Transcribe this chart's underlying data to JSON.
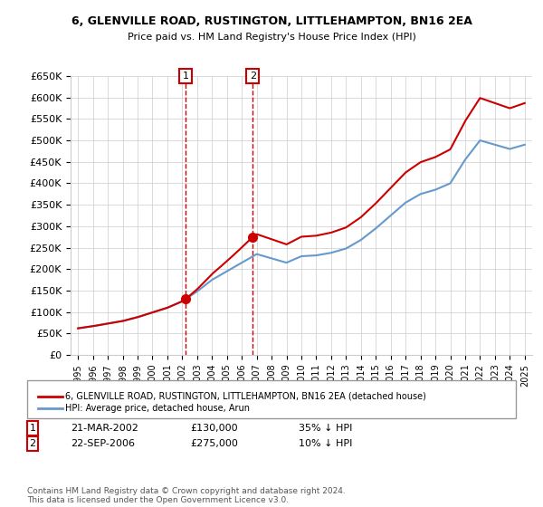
{
  "title": "6, GLENVILLE ROAD, RUSTINGTON, LITTLEHAMPTON, BN16 2EA",
  "subtitle": "Price paid vs. HM Land Registry's House Price Index (HPI)",
  "ylabel_ticks": [
    "£0",
    "£50K",
    "£100K",
    "£150K",
    "£200K",
    "£250K",
    "£300K",
    "£350K",
    "£400K",
    "£450K",
    "£500K",
    "£550K",
    "£600K",
    "£650K"
  ],
  "ytick_values": [
    0,
    50000,
    100000,
    150000,
    200000,
    250000,
    300000,
    350000,
    400000,
    450000,
    500000,
    550000,
    600000,
    650000
  ],
  "hpi_years": [
    1995,
    1996,
    1997,
    1998,
    1999,
    2000,
    2001,
    2002,
    2003,
    2004,
    2005,
    2006,
    2007,
    2008,
    2009,
    2010,
    2011,
    2012,
    2013,
    2014,
    2015,
    2016,
    2017,
    2018,
    2019,
    2020,
    2021,
    2022,
    2023,
    2024,
    2025
  ],
  "hpi_values": [
    62000,
    67000,
    73000,
    79000,
    88000,
    99000,
    110000,
    125000,
    148000,
    175000,
    195000,
    215000,
    235000,
    225000,
    215000,
    230000,
    232000,
    238000,
    248000,
    268000,
    295000,
    325000,
    355000,
    375000,
    385000,
    400000,
    455000,
    500000,
    490000,
    480000,
    490000
  ],
  "price_paid_dates": [
    2002.22,
    2006.73
  ],
  "price_paid_values": [
    130000,
    275000
  ],
  "vline1_x": 2002.22,
  "vline2_x": 2006.73,
  "vline_color": "#cc0000",
  "hpi_color": "#6699cc",
  "price_color": "#cc0000",
  "dot_color": "#cc0000",
  "legend_label1": "6, GLENVILLE ROAD, RUSTINGTON, LITTLEHAMPTON, BN16 2EA (detached house)",
  "legend_label2": "HPI: Average price, detached house, Arun",
  "ann1_label": "1",
  "ann2_label": "2",
  "ann1_date": "21-MAR-2002",
  "ann1_price": "£130,000",
  "ann1_hpi": "35% ↓ HPI",
  "ann2_date": "22-SEP-2006",
  "ann2_price": "£275,000",
  "ann2_hpi": "10% ↓ HPI",
  "footer": "Contains HM Land Registry data © Crown copyright and database right 2024.\nThis data is licensed under the Open Government Licence v3.0.",
  "bg_color": "#ffffff",
  "grid_color": "#cccccc",
  "xmin": 1994.5,
  "xmax": 2025.5,
  "ymin": 0,
  "ymax": 650000
}
